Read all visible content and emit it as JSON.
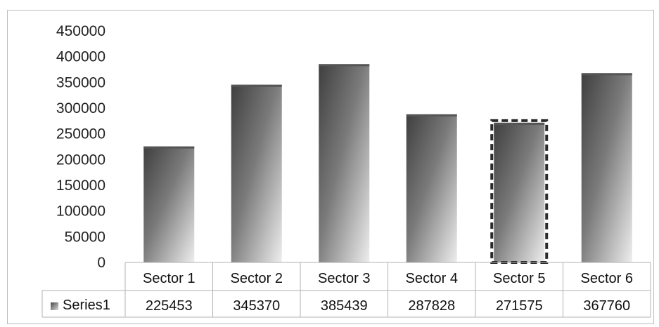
{
  "chart_data": {
    "type": "bar",
    "categories": [
      "Sector 1",
      "Sector 2",
      "Sector 3",
      "Sector 4",
      "Sector 5",
      "Sector 6"
    ],
    "series": [
      {
        "name": "Series1",
        "values": [
          225453,
          345370,
          385439,
          287828,
          271575,
          367760
        ]
      }
    ],
    "ylim": [
      0,
      450000
    ],
    "yticks": [
      0,
      50000,
      100000,
      150000,
      200000,
      250000,
      300000,
      350000,
      400000,
      450000
    ],
    "data_table": true,
    "selected_index": 4,
    "colors": {
      "bar_dark": "#4a4a4a",
      "bar_light": "#e6e6e6",
      "selection": "#2b2b2b"
    }
  }
}
